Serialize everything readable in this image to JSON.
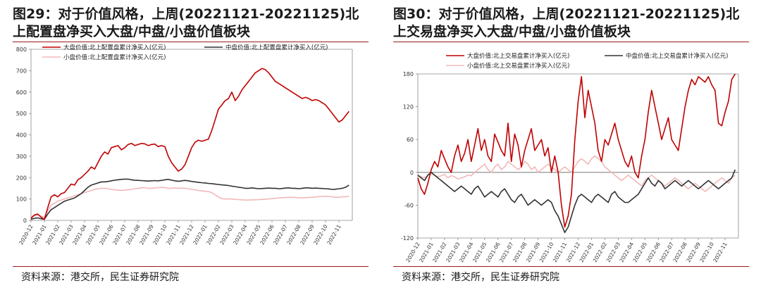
{
  "panels": [
    {
      "title": "图29：对于价值风格，上周(20221121-20221125)北上配置盘净买入大盘/中盘/小盘价值板块",
      "source": "资料来源：港交所，民生证券研究院"
    },
    {
      "title": "图30：对于价值风格，上周(20221121-20221125)北上交易盘净买入大盘/中盘/小盘价值板块",
      "source": "资料来源：港交所，民生证券研究院"
    }
  ],
  "chart_data": [
    {
      "type": "line",
      "ylim": [
        0,
        800
      ],
      "yticks": [
        "0",
        "100",
        "200",
        "300",
        "400",
        "500",
        "600",
        "700",
        "800"
      ],
      "ytick_values": [
        0,
        100,
        200,
        300,
        400,
        500,
        600,
        700,
        800
      ],
      "xticks": [
        "2020-12",
        "2021-01",
        "2021-02",
        "2021-03",
        "2021-04",
        "2021-05",
        "2021-06",
        "2021-07",
        "2021-08",
        "2021-09",
        "2021-10",
        "2021-11",
        "2021-12",
        "2022-01",
        "2022-02",
        "2022-03",
        "2022-04",
        "2022-05",
        "2022-06",
        "2022-07",
        "2022-08",
        "2022-09",
        "2022-10",
        "2022-11"
      ],
      "x": [
        0,
        0.25,
        0.5,
        0.75,
        1,
        1.25,
        1.5,
        1.75,
        2,
        2.25,
        2.5,
        2.75,
        3,
        3.25,
        3.5,
        3.75,
        4,
        4.25,
        4.5,
        4.75,
        5,
        5.25,
        5.5,
        5.75,
        6,
        6.25,
        6.5,
        6.75,
        7,
        7.25,
        7.5,
        7.75,
        8,
        8.25,
        8.5,
        8.75,
        9,
        9.25,
        9.5,
        9.75,
        10,
        10.25,
        10.5,
        10.75,
        11,
        11.25,
        11.5,
        11.75,
        12,
        12.25,
        12.5,
        12.75,
        13,
        13.25,
        13.5,
        13.75,
        14,
        14.25,
        14.5,
        14.75,
        15,
        15.25,
        15.5,
        15.75,
        16,
        16.25,
        16.5,
        16.75,
        17,
        17.25,
        17.5,
        17.75,
        18,
        18.25,
        18.5,
        18.75,
        19,
        19.25,
        19.5,
        19.75,
        20,
        20.25,
        20.5,
        20.75,
        21,
        21.25,
        21.5,
        21.75,
        22,
        22.25,
        22.5,
        22.75,
        23,
        23.25,
        23.5,
        23.75
      ],
      "series": [
        {
          "name": "大盘价值:北上配置盘累计净买入(亿元)",
          "color": "#c00000",
          "values": [
            10,
            25,
            30,
            15,
            5,
            60,
            110,
            120,
            110,
            125,
            130,
            150,
            170,
            165,
            190,
            200,
            215,
            230,
            250,
            240,
            270,
            300,
            320,
            310,
            340,
            345,
            350,
            330,
            340,
            355,
            360,
            350,
            355,
            360,
            358,
            350,
            355,
            357,
            345,
            350,
            345,
            300,
            270,
            250,
            230,
            240,
            260,
            300,
            340,
            365,
            375,
            370,
            375,
            380,
            420,
            470,
            520,
            540,
            560,
            570,
            600,
            560,
            580,
            610,
            630,
            650,
            670,
            690,
            700,
            710,
            705,
            690,
            670,
            650,
            640,
            630,
            620,
            610,
            600,
            590,
            580,
            570,
            575,
            570,
            560,
            565,
            560,
            550,
            540,
            520,
            500,
            480,
            460,
            470,
            490,
            510
          ]
        },
        {
          "name": "中盘价值:北上配置盘累计净买入(亿元)",
          "color": "#333333",
          "values": [
            5,
            10,
            12,
            8,
            5,
            30,
            50,
            60,
            70,
            80,
            90,
            95,
            100,
            105,
            115,
            125,
            140,
            155,
            165,
            170,
            175,
            180,
            180,
            182,
            185,
            188,
            190,
            192,
            193,
            193,
            190,
            188,
            187,
            186,
            185,
            184,
            185,
            186,
            185,
            187,
            190,
            192,
            188,
            185,
            183,
            185,
            187,
            185,
            182,
            180,
            178,
            176,
            175,
            173,
            172,
            170,
            168,
            166,
            165,
            163,
            160,
            158,
            155,
            153,
            150,
            150,
            152,
            150,
            148,
            149,
            150,
            151,
            150,
            150,
            148,
            149,
            151,
            152,
            150,
            150,
            148,
            150,
            152,
            152,
            150,
            151,
            150,
            149,
            148,
            147,
            145,
            146,
            148,
            150,
            155,
            165
          ]
        },
        {
          "name": "小盘价值:北上配置盘累计净买入(亿元)",
          "color": "#f2b8b8",
          "values": [
            20,
            22,
            25,
            20,
            15,
            45,
            70,
            80,
            90,
            95,
            100,
            105,
            110,
            115,
            120,
            125,
            130,
            135,
            140,
            145,
            148,
            150,
            150,
            148,
            145,
            143,
            142,
            140,
            142,
            143,
            145,
            148,
            150,
            152,
            153,
            150,
            150,
            152,
            153,
            155,
            153,
            150,
            150,
            152,
            150,
            151,
            150,
            148,
            145,
            143,
            140,
            138,
            136,
            135,
            130,
            120,
            110,
            102,
            100,
            100,
            100,
            98,
            97,
            96,
            95,
            95,
            96,
            96,
            97,
            98,
            99,
            100,
            102,
            103,
            105,
            106,
            107,
            108,
            108,
            107,
            106,
            105,
            106,
            107,
            108,
            110,
            111,
            112,
            113,
            112,
            110,
            108,
            108,
            110,
            111,
            112
          ]
        }
      ]
    },
    {
      "type": "line",
      "ylim": [
        -120,
        180
      ],
      "yticks": [
        "-120",
        "-60",
        "0",
        "60",
        "120",
        "180"
      ],
      "ytick_values": [
        -120,
        -60,
        0,
        60,
        120,
        180
      ],
      "xticks": [
        "2020-12",
        "2021-01",
        "2021-02",
        "2021-03",
        "2021-04",
        "2021-05",
        "2021-06",
        "2021-07",
        "2021-08",
        "2021-09",
        "2021-10",
        "2021-11",
        "2021-12",
        "2022-01",
        "2022-02",
        "2022-03",
        "2022-04",
        "2022-05",
        "2022-06",
        "2022-07",
        "2022-08",
        "2022-09",
        "2022-10",
        "2022-11"
      ],
      "x": [
        0,
        0.25,
        0.5,
        0.75,
        1,
        1.25,
        1.5,
        1.75,
        2,
        2.25,
        2.5,
        2.75,
        3,
        3.25,
        3.5,
        3.75,
        4,
        4.25,
        4.5,
        4.75,
        5,
        5.25,
        5.5,
        5.75,
        6,
        6.25,
        6.5,
        6.75,
        7,
        7.25,
        7.5,
        7.75,
        8,
        8.25,
        8.5,
        8.75,
        9,
        9.25,
        9.5,
        9.75,
        10,
        10.25,
        10.5,
        10.75,
        11,
        11.25,
        11.5,
        11.75,
        12,
        12.25,
        12.5,
        12.75,
        13,
        13.25,
        13.5,
        13.75,
        14,
        14.25,
        14.5,
        14.75,
        15,
        15.25,
        15.5,
        15.75,
        16,
        16.25,
        16.5,
        16.75,
        17,
        17.25,
        17.5,
        17.75,
        18,
        18.25,
        18.5,
        18.75,
        19,
        19.25,
        19.5,
        19.75,
        20,
        20.25,
        20.5,
        20.75,
        21,
        21.25,
        21.5,
        21.75,
        22,
        22.25,
        22.5,
        22.75,
        23,
        23.25,
        23.5,
        23.75
      ],
      "series": [
        {
          "name": "大盘价值:北上交易盘累计净买入(亿元)",
          "color": "#c00000",
          "values": [
            -10,
            -30,
            -40,
            -20,
            5,
            20,
            10,
            40,
            25,
            10,
            0,
            30,
            50,
            20,
            35,
            60,
            20,
            50,
            80,
            40,
            60,
            30,
            20,
            70,
            55,
            40,
            30,
            90,
            20,
            70,
            50,
            10,
            40,
            60,
            80,
            40,
            50,
            60,
            30,
            45,
            0,
            30,
            0,
            -60,
            -100,
            -80,
            -40,
            60,
            130,
            175,
            100,
            150,
            120,
            90,
            40,
            20,
            60,
            50,
            70,
            90,
            60,
            40,
            20,
            10,
            30,
            0,
            -10,
            30,
            60,
            110,
            150,
            120,
            90,
            60,
            80,
            100,
            60,
            50,
            40,
            80,
            120,
            150,
            170,
            160,
            175,
            170,
            165,
            175,
            160,
            150,
            90,
            85,
            110,
            130,
            170,
            180
          ]
        },
        {
          "name": "中盘价值:北上交易盘累计净买入(亿元)",
          "color": "#333333",
          "values": [
            -5,
            -10,
            -15,
            -5,
            0,
            -5,
            -10,
            -15,
            -20,
            -25,
            -30,
            -35,
            -30,
            -25,
            -30,
            -35,
            -40,
            -30,
            -25,
            -35,
            -45,
            -40,
            -35,
            -40,
            -45,
            -35,
            -30,
            -40,
            -50,
            -55,
            -45,
            -40,
            -50,
            -60,
            -55,
            -50,
            -55,
            -60,
            -55,
            -50,
            -55,
            -70,
            -80,
            -95,
            -110,
            -100,
            -80,
            -60,
            -45,
            -40,
            -45,
            -50,
            -55,
            -45,
            -40,
            -45,
            -50,
            -55,
            -40,
            -35,
            -45,
            -50,
            -55,
            -55,
            -50,
            -45,
            -40,
            -30,
            -20,
            -10,
            -20,
            -25,
            -15,
            -20,
            -30,
            -25,
            -20,
            -15,
            -20,
            -25,
            -20,
            -15,
            -20,
            -25,
            -30,
            -25,
            -20,
            -15,
            -20,
            -25,
            -30,
            -25,
            -20,
            -15,
            -10,
            5
          ]
        },
        {
          "name": "小盘价值:北上交易盘累计净买入(亿元)",
          "color": "#f2b8b8",
          "values": [
            -5,
            -8,
            -10,
            -5,
            -2,
            -5,
            -8,
            -6,
            -4,
            -10,
            -6,
            -8,
            -12,
            -10,
            -8,
            -5,
            -6,
            0,
            5,
            10,
            15,
            5,
            0,
            10,
            15,
            5,
            10,
            20,
            15,
            10,
            5,
            10,
            20,
            15,
            5,
            10,
            0,
            5,
            10,
            15,
            10,
            5,
            0,
            5,
            10,
            5,
            0,
            10,
            20,
            25,
            20,
            15,
            25,
            30,
            25,
            20,
            10,
            5,
            0,
            -5,
            -10,
            -15,
            -10,
            -5,
            -10,
            -15,
            -20,
            -25,
            -15,
            -10,
            -5,
            -10,
            -15,
            -20,
            -25,
            -20,
            -15,
            -10,
            -15,
            -20,
            -25,
            -30,
            -25,
            -20,
            -25,
            -30,
            -35,
            -30,
            -25,
            -20,
            -15,
            -10,
            -15,
            -20,
            -10,
            -5
          ]
        }
      ]
    }
  ]
}
